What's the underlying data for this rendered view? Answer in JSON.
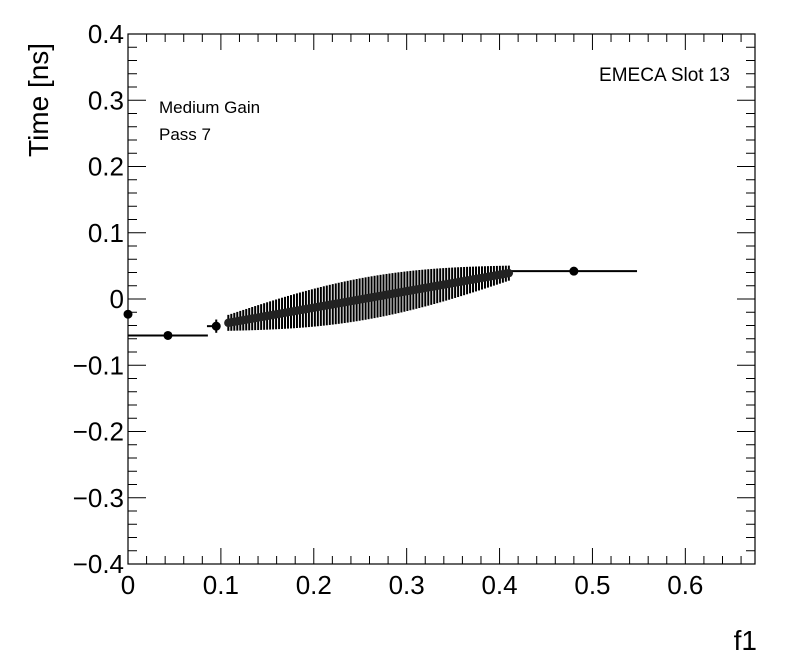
{
  "chart_data": {
    "type": "scatter",
    "ylabel": "Time [ns]",
    "xlabel": "f1",
    "xlim": [
      0,
      0.675
    ],
    "ylim": [
      -0.4,
      0.4
    ],
    "x_ticks": [
      0,
      0.1,
      0.2,
      0.3,
      0.4,
      0.5,
      0.6
    ],
    "x_tick_labels": [
      "0",
      "0.1",
      "0.2",
      "0.3",
      "0.4",
      "0.5",
      "0.6"
    ],
    "y_ticks": [
      -0.4,
      -0.3,
      -0.2,
      -0.1,
      0,
      0.1,
      0.2,
      0.3,
      0.4
    ],
    "y_tick_labels": [
      "−0.4",
      "−0.3",
      "−0.2",
      "−0.1",
      "0",
      "0.1",
      "0.2",
      "0.3",
      "0.4"
    ],
    "grid": false,
    "annotations": {
      "gain": "Medium Gain",
      "pass": "Pass 7",
      "slot": "EMECA Slot 13"
    },
    "isolated_points": [
      {
        "x": 0.0,
        "y": -0.023,
        "xerr": 0.0,
        "yerr": 0.003
      },
      {
        "x": 0.043,
        "y": -0.055,
        "xerr_low": 0.043,
        "xerr_high": 0.043,
        "yerr": 0.005
      },
      {
        "x": 0.095,
        "y": -0.041,
        "xerr_low": 0.01,
        "xerr_high": 0.0,
        "yerr": 0.01
      },
      {
        "x": 0.48,
        "y": 0.042,
        "xerr_low": 0.07,
        "xerr_high": 0.068,
        "yerr": 0.005
      }
    ],
    "dense_series": {
      "x_start": 0.108,
      "x_end": 0.41,
      "y_start": -0.036,
      "y_end": 0.039,
      "n_points": 95,
      "yerr_min": 0.01,
      "yerr_max": 0.032
    }
  }
}
